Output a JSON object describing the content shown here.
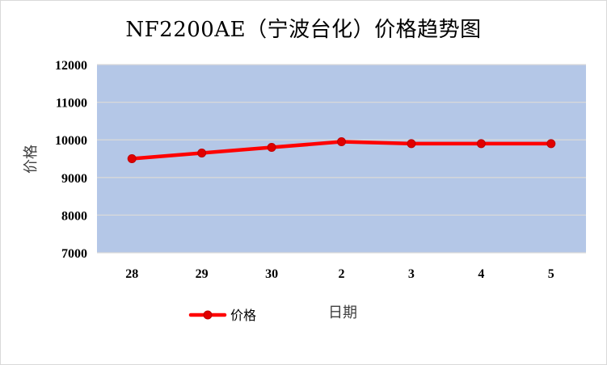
{
  "chart_data": {
    "type": "line",
    "title": "NF2200AE（宁波台化）价格趋势图",
    "xlabel": "日期",
    "ylabel": "价格",
    "categories": [
      "28",
      "29",
      "30",
      "2",
      "3",
      "4",
      "5"
    ],
    "series": [
      {
        "name": "价格",
        "values": [
          9500,
          9650,
          9800,
          9950,
          9900,
          9900,
          9900
        ]
      }
    ],
    "ylim": [
      7000,
      12000
    ],
    "yticks": [
      7000,
      8000,
      9000,
      10000,
      11000,
      12000
    ],
    "grid": true,
    "legend_position": "bottom-left",
    "colors": {
      "line": "#ff0000",
      "marker_fill": "#e00000",
      "plot_background": "#b4c7e7",
      "gridline": "#d9d9d9"
    }
  }
}
